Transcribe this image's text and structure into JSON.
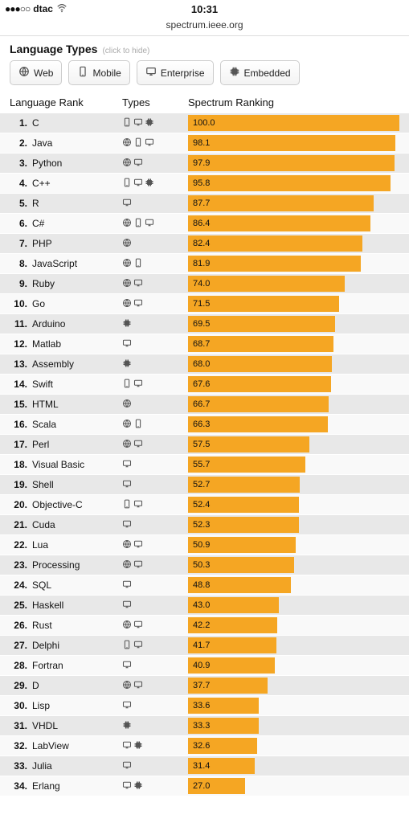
{
  "status": {
    "carrier": "dtac",
    "time": "10:31"
  },
  "url": "spectrum.ieee.org",
  "section": {
    "title": "Language Types",
    "hint": "(click to hide)"
  },
  "filters": [
    {
      "key": "web",
      "label": "Web"
    },
    {
      "key": "mobile",
      "label": "Mobile"
    },
    {
      "key": "enterprise",
      "label": "Enterprise"
    },
    {
      "key": "embedded",
      "label": "Embedded"
    }
  ],
  "columns": {
    "rank": "Language Rank",
    "types": "Types",
    "spectrum": "Spectrum Ranking"
  },
  "chart": {
    "max_value": 100.0,
    "bar_color": "#f5a623",
    "row_odd_bg": "#e8e8e8",
    "row_even_bg": "#f9f9f9"
  },
  "rows": [
    {
      "rank": 1,
      "name": "C",
      "types": [
        "mobile",
        "enterprise",
        "embedded"
      ],
      "value": 100.0
    },
    {
      "rank": 2,
      "name": "Java",
      "types": [
        "web",
        "mobile",
        "enterprise"
      ],
      "value": 98.1
    },
    {
      "rank": 3,
      "name": "Python",
      "types": [
        "web",
        "enterprise"
      ],
      "value": 97.9
    },
    {
      "rank": 4,
      "name": "C++",
      "types": [
        "mobile",
        "enterprise",
        "embedded"
      ],
      "value": 95.8
    },
    {
      "rank": 5,
      "name": "R",
      "types": [
        "enterprise"
      ],
      "value": 87.7
    },
    {
      "rank": 6,
      "name": "C#",
      "types": [
        "web",
        "mobile",
        "enterprise"
      ],
      "value": 86.4
    },
    {
      "rank": 7,
      "name": "PHP",
      "types": [
        "web"
      ],
      "value": 82.4
    },
    {
      "rank": 8,
      "name": "JavaScript",
      "types": [
        "web",
        "mobile"
      ],
      "value": 81.9
    },
    {
      "rank": 9,
      "name": "Ruby",
      "types": [
        "web",
        "enterprise"
      ],
      "value": 74.0
    },
    {
      "rank": 10,
      "name": "Go",
      "types": [
        "web",
        "enterprise"
      ],
      "value": 71.5
    },
    {
      "rank": 11,
      "name": "Arduino",
      "types": [
        "embedded"
      ],
      "value": 69.5
    },
    {
      "rank": 12,
      "name": "Matlab",
      "types": [
        "enterprise"
      ],
      "value": 68.7
    },
    {
      "rank": 13,
      "name": "Assembly",
      "types": [
        "embedded"
      ],
      "value": 68.0
    },
    {
      "rank": 14,
      "name": "Swift",
      "types": [
        "mobile",
        "enterprise"
      ],
      "value": 67.6
    },
    {
      "rank": 15,
      "name": "HTML",
      "types": [
        "web"
      ],
      "value": 66.7
    },
    {
      "rank": 16,
      "name": "Scala",
      "types": [
        "web",
        "mobile"
      ],
      "value": 66.3
    },
    {
      "rank": 17,
      "name": "Perl",
      "types": [
        "web",
        "enterprise"
      ],
      "value": 57.5
    },
    {
      "rank": 18,
      "name": "Visual Basic",
      "types": [
        "enterprise"
      ],
      "value": 55.7
    },
    {
      "rank": 19,
      "name": "Shell",
      "types": [
        "enterprise"
      ],
      "value": 52.7
    },
    {
      "rank": 20,
      "name": "Objective-C",
      "types": [
        "mobile",
        "enterprise"
      ],
      "value": 52.4
    },
    {
      "rank": 21,
      "name": "Cuda",
      "types": [
        "enterprise"
      ],
      "value": 52.3
    },
    {
      "rank": 22,
      "name": "Lua",
      "types": [
        "web",
        "enterprise"
      ],
      "value": 50.9
    },
    {
      "rank": 23,
      "name": "Processing",
      "types": [
        "web",
        "enterprise"
      ],
      "value": 50.3
    },
    {
      "rank": 24,
      "name": "SQL",
      "types": [
        "enterprise"
      ],
      "value": 48.8
    },
    {
      "rank": 25,
      "name": "Haskell",
      "types": [
        "enterprise"
      ],
      "value": 43.0
    },
    {
      "rank": 26,
      "name": "Rust",
      "types": [
        "web",
        "enterprise"
      ],
      "value": 42.2
    },
    {
      "rank": 27,
      "name": "Delphi",
      "types": [
        "mobile",
        "enterprise"
      ],
      "value": 41.7
    },
    {
      "rank": 28,
      "name": "Fortran",
      "types": [
        "enterprise"
      ],
      "value": 40.9
    },
    {
      "rank": 29,
      "name": "D",
      "types": [
        "web",
        "enterprise"
      ],
      "value": 37.7
    },
    {
      "rank": 30,
      "name": "Lisp",
      "types": [
        "enterprise"
      ],
      "value": 33.6
    },
    {
      "rank": 31,
      "name": "VHDL",
      "types": [
        "embedded"
      ],
      "value": 33.3
    },
    {
      "rank": 32,
      "name": "LabView",
      "types": [
        "enterprise",
        "embedded"
      ],
      "value": 32.6
    },
    {
      "rank": 33,
      "name": "Julia",
      "types": [
        "enterprise"
      ],
      "value": 31.4
    },
    {
      "rank": 34,
      "name": "Erlang",
      "types": [
        "enterprise",
        "embedded"
      ],
      "value": 27.0
    }
  ]
}
